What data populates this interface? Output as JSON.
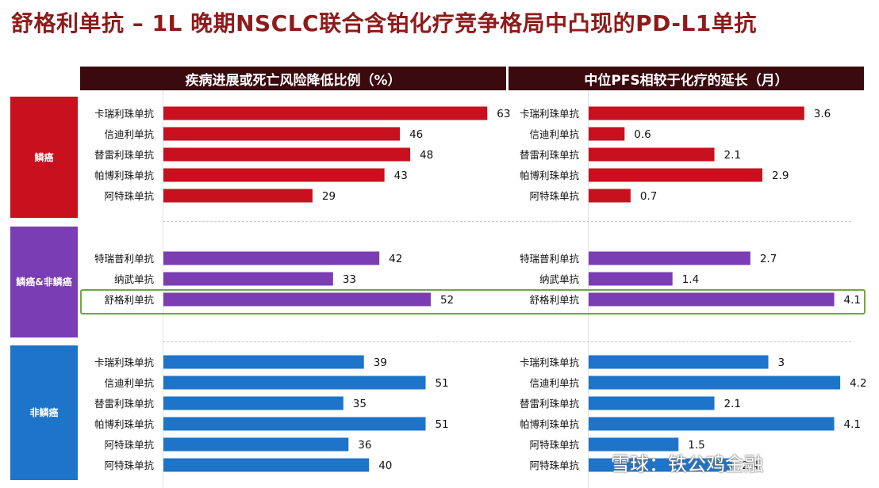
{
  "title": "舒格利单抗 – 1L 晚期NSCLC联合含铂化疗竞争格局中凸现的PD-L1单抗",
  "watermark": "雪球：铁公鸡金融",
  "chart_data": [
    {
      "type": "bar",
      "title": "疾病进展或死亡风险降低比例（%）",
      "groups": [
        {
          "name": "鳞癌",
          "color": "#c8101e",
          "categories": [
            "卡瑞利珠单抗",
            "信迪利单抗",
            "替雷利珠单抗",
            "帕博利珠单抗",
            "阿特珠单抗"
          ],
          "values": [
            63,
            46,
            48,
            43,
            29
          ]
        },
        {
          "name": "鳞癌&非鳞癌",
          "color": "#7a3db3",
          "categories": [
            "特瑞普利单抗",
            "纳武单抗",
            "舒格利单抗"
          ],
          "values": [
            42,
            33,
            52
          ]
        },
        {
          "name": "非鳞癌",
          "color": "#1e74c8",
          "categories": [
            "卡瑞利珠单抗",
            "信迪利单抗",
            "替雷利珠单抗",
            "帕博利珠单抗",
            "阿特珠单抗",
            "阿特珠单抗"
          ],
          "values": [
            39,
            51,
            35,
            51,
            36,
            40
          ]
        }
      ]
    },
    {
      "type": "bar",
      "title": "中位PFS相较于化疗的延长（月）",
      "groups": [
        {
          "name": "鳞癌",
          "color": "#c8101e",
          "categories": [
            "卡瑞利珠单抗",
            "信迪利单抗",
            "替雷利珠单抗",
            "帕博利珠单抗",
            "阿特珠单抗"
          ],
          "values": [
            3.6,
            0.6,
            2.1,
            2.9,
            0.7
          ]
        },
        {
          "name": "鳞癌&非鳞癌",
          "color": "#7a3db3",
          "categories": [
            "特瑞普利单抗",
            "纳武单抗",
            "舒格利单抗"
          ],
          "values": [
            2.7,
            1.4,
            4.1
          ]
        },
        {
          "name": "非鳞癌",
          "color": "#1e74c8",
          "categories": [
            "卡瑞利珠单抗",
            "信迪利单抗",
            "替雷利珠单抗",
            "帕博利珠单抗",
            "阿特珠单抗",
            "阿特珠单抗"
          ],
          "values": [
            3,
            4.2,
            2.1,
            4.1,
            1.5,
            2.4
          ]
        }
      ]
    }
  ]
}
